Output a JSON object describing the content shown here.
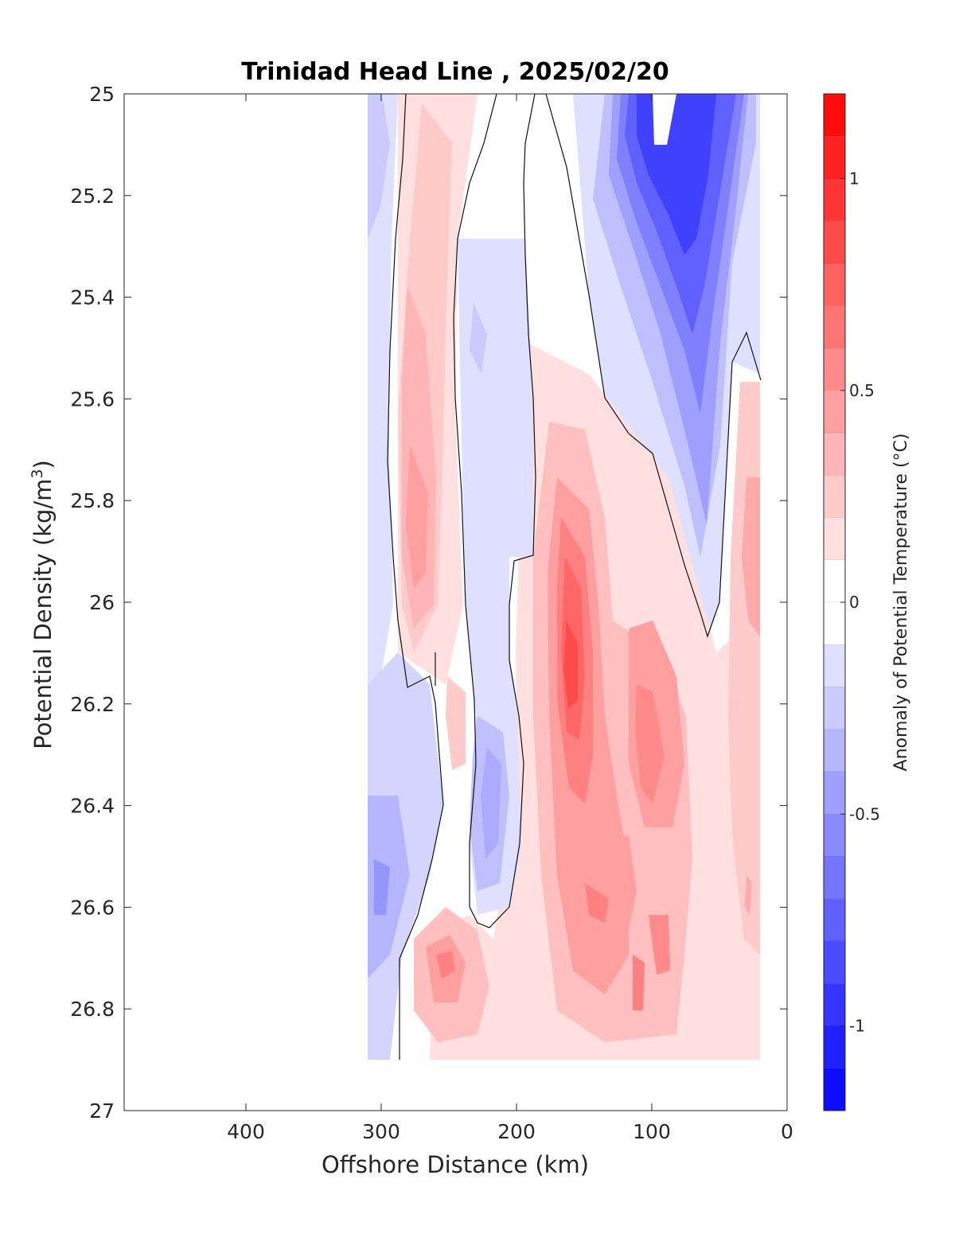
{
  "chart_data": {
    "type": "heatmap",
    "subtype": "filled-contour",
    "title": "Trinidad Head Line , 2025/02/20",
    "xlabel": "Offshore Distance (km)",
    "ylabel_main": "Potential Density (kg/m",
    "ylabel_sup": "3",
    "ylabel_close": ")",
    "colorbar_label": "Anomaly of Potential Temperature (°C)",
    "xlim": [
      490,
      0
    ],
    "x_reversed": true,
    "ylim": [
      25,
      27
    ],
    "y_reversed": true,
    "xticks": [
      400,
      300,
      200,
      100,
      0
    ],
    "xtick_labels": [
      "400",
      "300",
      "200",
      "100",
      "0"
    ],
    "yticks": [
      25,
      25.2,
      25.4,
      25.6,
      25.8,
      26,
      26.2,
      26.4,
      26.6,
      26.8,
      27
    ],
    "ytick_labels": [
      "25",
      "25.2",
      "25.4",
      "25.6",
      "25.8",
      "26",
      "26.2",
      "26.4",
      "26.6",
      "26.8",
      "27"
    ],
    "colorbar": {
      "range": [
        -1.2,
        1.2
      ],
      "step": 0.1,
      "ticks": [
        1,
        0.5,
        0,
        -0.5,
        -1
      ],
      "tick_labels": [
        "1",
        "0.5",
        "0",
        "-0.5",
        "-1"
      ],
      "colormap": "blue-white-red"
    },
    "data_extent": {
      "x": [
        20,
        310
      ],
      "y": [
        25,
        26.9
      ]
    },
    "contour_lines": [
      0
    ],
    "grid": false,
    "regions": [
      {
        "name": "offshore-negative-band",
        "anomaly": -0.2,
        "x_center": 300,
        "y_center": 26.3
      },
      {
        "name": "offshore-deep-negative",
        "anomaly": -0.4,
        "x_center": 295,
        "y_center": 26.6
      },
      {
        "name": "west-positive-tongue",
        "anomaly": 0.3,
        "x_center": 270,
        "y_center": 25.8
      },
      {
        "name": "mid-negative-tongue",
        "anomaly": -0.3,
        "x_center": 215,
        "y_center": 26.4
      },
      {
        "name": "central-positive-core",
        "anomaly": 0.8,
        "x_center": 160,
        "y_center": 26.15
      },
      {
        "name": "east-positive-core",
        "anomaly": 0.6,
        "x_center": 105,
        "y_center": 26.3
      },
      {
        "name": "deep-positive-band",
        "anomaly": 0.4,
        "x_center": 130,
        "y_center": 26.7
      },
      {
        "name": "southwest-positive-blob",
        "anomaly": 0.5,
        "x_center": 250,
        "y_center": 26.72
      },
      {
        "name": "shallow-negative-cold-core",
        "anomaly": -1.0,
        "x_center": 95,
        "y_center": 25.2
      },
      {
        "name": "coastal-positive-band",
        "anomaly": 0.3,
        "x_center": 30,
        "y_center": 26.0
      }
    ]
  }
}
